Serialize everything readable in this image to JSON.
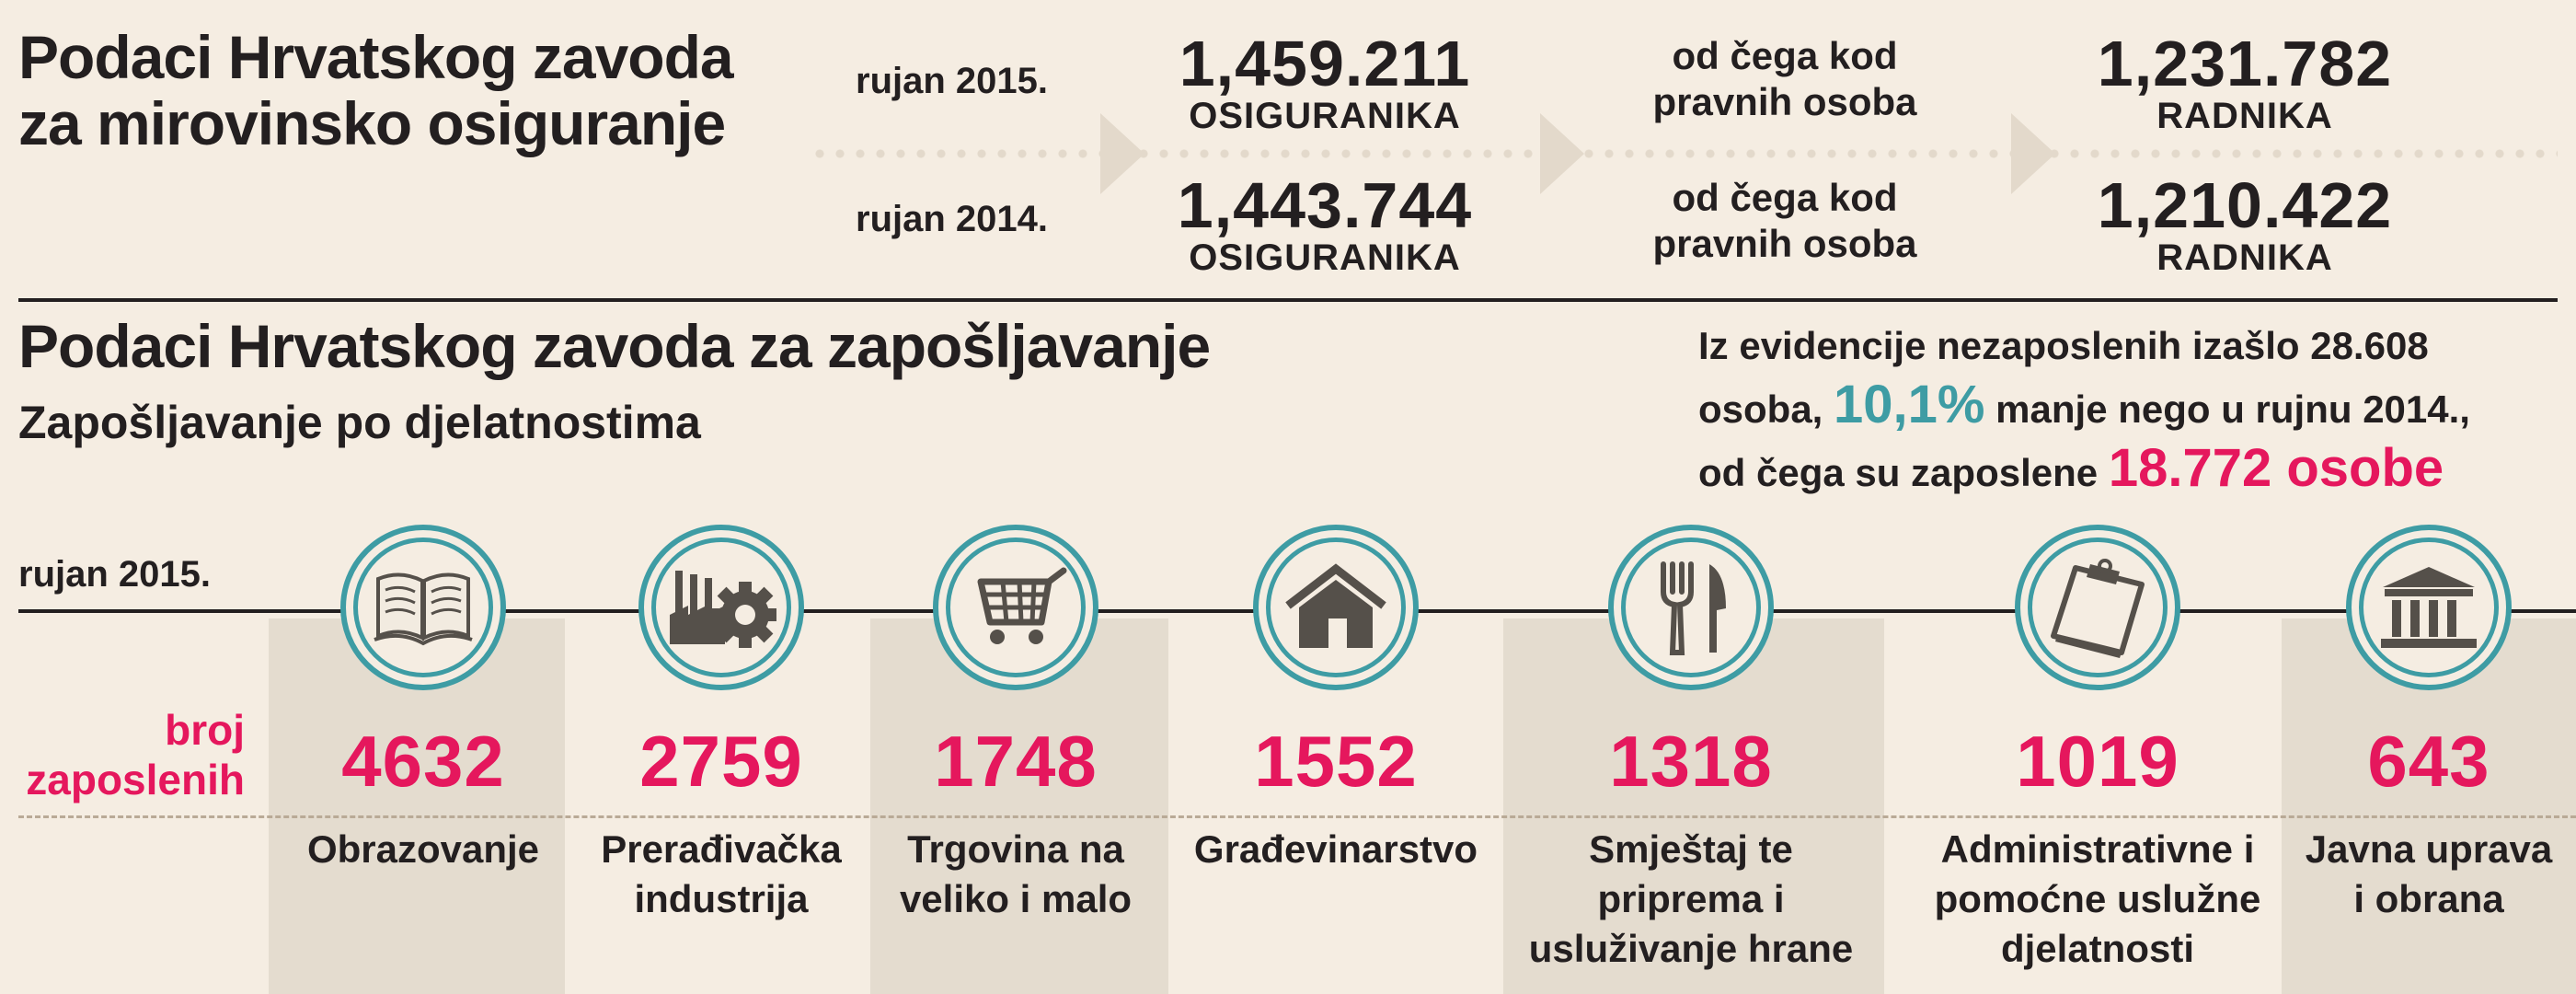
{
  "section1": {
    "title_line1": "Podaci Hrvatskog zavoda",
    "title_line2": "za mirovinsko osiguranje",
    "rows": [
      {
        "period": "rujan 2015.",
        "insured": "1,459.211",
        "insured_unit": "OSIGURANIKA",
        "middle_line1": "od čega kod",
        "middle_line2": "pravnih osoba",
        "workers": "1,231.782",
        "workers_unit": "RADNIKA"
      },
      {
        "period": "rujan 2014.",
        "insured": "1,443.744",
        "insured_unit": "OSIGURANIKA",
        "middle_line1": "od čega kod",
        "middle_line2": "pravnih osoba",
        "workers": "1,210.422",
        "workers_unit": "RADNIKA"
      }
    ]
  },
  "section2": {
    "title": "Podaci Hrvatskog zavoda za zapošljavanje",
    "subtitle": "Zapošljavanje po djelatnostima",
    "note_line1": "Iz evidencije nezaposlenih izašlo 28.608",
    "note_line2_a": "osoba, ",
    "note_line2_highlight": "10,1%",
    "note_line2_b": " manje nego u rujnu 2014.,",
    "note_line3_a": "od čega su zaposlene ",
    "note_line3_highlight": "18.772 osobe",
    "period": "rujan 2015.",
    "count_label_line1": "broj",
    "count_label_line2": "zaposlenih"
  },
  "colors": {
    "accent_pink": "#e5175d",
    "accent_teal": "#3e9ca4",
    "background": "#f5ede2",
    "column_shade": "#e4dccf"
  },
  "chart_data": {
    "type": "table",
    "title": "Zapošljavanje po djelatnostima",
    "period": "rujan 2015.",
    "value_label": "broj zaposlenih",
    "categories": [
      "Obrazovanje",
      "Prerađivačka industrija",
      "Trgovina na veliko i malo",
      "Građevinarstvo",
      "Smještaj te priprema i usluživanje hrane",
      "Administrativne i pomoćne uslužne djelatnosti",
      "Javna uprava i obrana"
    ],
    "values": [
      4632,
      2759,
      1748,
      1552,
      1318,
      1019,
      643
    ],
    "icons": [
      "book-icon",
      "factory-gear-icon",
      "shopping-cart-icon",
      "house-icon",
      "fork-knife-icon",
      "clipboard-icon",
      "government-building-icon"
    ],
    "category_lines": [
      [
        "Obrazovanje"
      ],
      [
        "Prerađivačka",
        "industrija"
      ],
      [
        "Trgovina na",
        "veliko i malo"
      ],
      [
        "Građevinarstvo"
      ],
      [
        "Smještaj te",
        "priprema i",
        "usluživanje hrane"
      ],
      [
        "Administrativne i",
        "pomoćne uslužne",
        "djelatnosti"
      ],
      [
        "Javna uprava",
        "i obrana"
      ]
    ]
  }
}
